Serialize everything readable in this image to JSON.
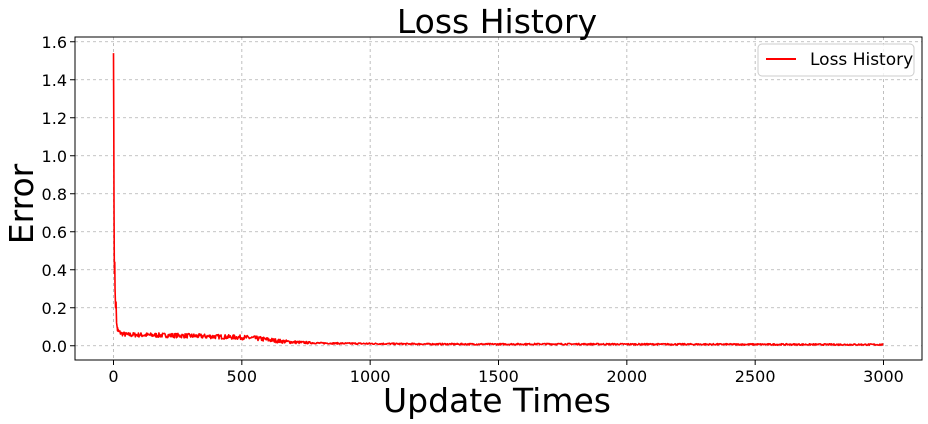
{
  "chart_data": {
    "type": "line",
    "title": "Loss History",
    "xlabel": "Update Times",
    "ylabel": "Error",
    "xlim": [
      -150,
      3150
    ],
    "ylim": [
      -0.075,
      1.625
    ],
    "xticks": [
      0,
      500,
      1000,
      1500,
      2000,
      2500,
      3000
    ],
    "yticks": [
      0.0,
      0.2,
      0.4,
      0.6,
      0.8,
      1.0,
      1.2,
      1.4,
      1.6
    ],
    "xtick_labels": [
      "0",
      "500",
      "1000",
      "1500",
      "2000",
      "2500",
      "3000"
    ],
    "ytick_labels": [
      "0.0",
      "0.2",
      "0.4",
      "0.6",
      "0.8",
      "1.0",
      "1.2",
      "1.4",
      "1.6"
    ],
    "grid": true,
    "legend_position": "top-right",
    "series": [
      {
        "name": "Loss History",
        "color": "#ff0000",
        "points": [
          [
            0,
            1.54
          ],
          [
            1,
            1.2
          ],
          [
            2,
            0.75
          ],
          [
            3,
            0.46
          ],
          [
            4,
            0.38
          ],
          [
            5,
            0.44
          ],
          [
            6,
            0.3
          ],
          [
            8,
            0.2
          ],
          [
            10,
            0.23
          ],
          [
            12,
            0.12
          ],
          [
            15,
            0.09
          ],
          [
            20,
            0.075
          ],
          [
            30,
            0.065
          ],
          [
            50,
            0.058
          ],
          [
            100,
            0.057
          ],
          [
            200,
            0.055
          ],
          [
            300,
            0.052
          ],
          [
            400,
            0.048
          ],
          [
            500,
            0.044
          ],
          [
            550,
            0.04
          ],
          [
            600,
            0.032
          ],
          [
            650,
            0.024
          ],
          [
            700,
            0.019
          ],
          [
            800,
            0.014
          ],
          [
            900,
            0.012
          ],
          [
            1000,
            0.011
          ],
          [
            1200,
            0.009
          ],
          [
            1500,
            0.008
          ],
          [
            1700,
            0.009
          ],
          [
            2000,
            0.008
          ],
          [
            2500,
            0.007
          ],
          [
            3000,
            0.006
          ]
        ],
        "noise_amplitude": [
          [
            0,
            0.0
          ],
          [
            20,
            0.012
          ],
          [
            600,
            0.012
          ],
          [
            800,
            0.004
          ],
          [
            3000,
            0.004
          ]
        ]
      }
    ]
  }
}
